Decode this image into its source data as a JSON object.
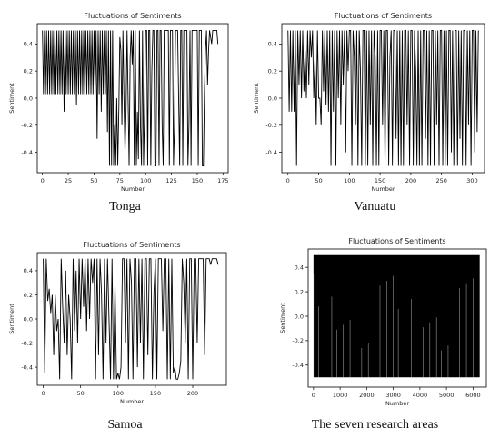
{
  "captions": [
    "Tonga",
    "Vanuatu",
    "Samoa",
    "The seven research areas"
  ],
  "chart_data": [
    {
      "type": "line",
      "title": "Fluctuations of Sentiments",
      "xlabel": "Number",
      "ylabel": "Sentiment",
      "xlim": [
        -5,
        180
      ],
      "ylim": [
        -0.55,
        0.55
      ],
      "xticks": [
        0,
        25,
        50,
        75,
        100,
        125,
        150,
        175
      ],
      "yticks": [
        -0.4,
        -0.2,
        0.0,
        0.2,
        0.4
      ],
      "series": [
        {
          "x": [
            0,
            1,
            2,
            3,
            4,
            5,
            6,
            7,
            8,
            9,
            10,
            11,
            12,
            13,
            14,
            15,
            16,
            17,
            18,
            19,
            20,
            21,
            22,
            23,
            24,
            25,
            26,
            27,
            28,
            29,
            30,
            31,
            32,
            33,
            34,
            35,
            36,
            37,
            38,
            39,
            40,
            41,
            42,
            43,
            44,
            45,
            46,
            47,
            48,
            49,
            50,
            51,
            52,
            53,
            54,
            55,
            56,
            57,
            58,
            59,
            60,
            61,
            62,
            63,
            64,
            65,
            66,
            67,
            68,
            69,
            70,
            71,
            72,
            73,
            74,
            75,
            76,
            77,
            78,
            79,
            80,
            81,
            82,
            83,
            84,
            85,
            86,
            87,
            88,
            89,
            90,
            91,
            92,
            93,
            94,
            95,
            96,
            97,
            98,
            99,
            100,
            101,
            102,
            103,
            104,
            105,
            106,
            107,
            108,
            109,
            110,
            111,
            112,
            113,
            114,
            115,
            116,
            117,
            118,
            119,
            120,
            121,
            122,
            123,
            124,
            125,
            126,
            127,
            128,
            129,
            130,
            131,
            132,
            133,
            134,
            135,
            136,
            137,
            138,
            139,
            140,
            141,
            142,
            143,
            144,
            145,
            146,
            147,
            148,
            149,
            150,
            151,
            152,
            153,
            154,
            155,
            156,
            157,
            158,
            159,
            160,
            161,
            162,
            163,
            164,
            165,
            166,
            167,
            168,
            169,
            170
          ],
          "y": [
            0.5,
            0.03,
            0.5,
            0.03,
            0.5,
            0.03,
            0.5,
            0.03,
            0.5,
            0.03,
            0.5,
            0.03,
            0.5,
            0.03,
            0.5,
            0.03,
            0.5,
            0.03,
            0.5,
            0.03,
            0.5,
            -0.1,
            0.5,
            0.03,
            0.5,
            0.03,
            0.5,
            0.03,
            0.5,
            0.03,
            0.5,
            0.03,
            0.5,
            -0.05,
            0.5,
            0.03,
            0.5,
            0.03,
            0.5,
            0.03,
            0.5,
            0.03,
            0.5,
            0.03,
            0.5,
            0.03,
            0.5,
            0.03,
            0.5,
            0.03,
            0.5,
            0.03,
            0.5,
            -0.3,
            0.5,
            0.03,
            0.5,
            -0.1,
            0.5,
            0.03,
            0.5,
            0.03,
            0.5,
            -0.25,
            0.5,
            -0.5,
            0.5,
            -0.5,
            0.5,
            -0.5,
            -0.2,
            -0.5,
            0.0,
            -0.5,
            -0.1,
            0.45,
            0.35,
            -0.2,
            0.5,
            0.0,
            -0.4,
            -0.1,
            0.5,
            0.0,
            -0.5,
            0.3,
            0.5,
            0.25,
            0.5,
            -0.5,
            0.5,
            -0.5,
            -0.1,
            -0.45,
            0.5,
            -0.2,
            -0.5,
            0.5,
            -0.5,
            -0.1,
            0.5,
            0.5,
            -0.5,
            0.5,
            0.5,
            -0.5,
            0.2,
            0.5,
            0.5,
            -0.5,
            -0.5,
            0.5,
            0.5,
            -0.5,
            0.5,
            0.5,
            -0.2,
            -0.5,
            0.5,
            0.5,
            0.5,
            0.5,
            0.5,
            -0.5,
            0.5,
            0.5,
            0.5,
            -0.5,
            -0.2,
            0.5,
            0.5,
            0.5,
            0.0,
            -0.5,
            0.5,
            0.5,
            -0.5,
            0.5,
            0.5,
            0.5,
            0.5,
            -0.5,
            -0.2,
            0.5,
            -0.5,
            0.5,
            0.5,
            0.5,
            0.5,
            0.5,
            0.5,
            -0.5,
            0.5,
            0.5,
            0.5,
            -0.5,
            -0.5,
            0.05,
            0.35,
            0.5,
            0.1,
            0.35,
            0.5,
            0.45,
            0.4,
            0.5,
            0.5,
            0.5,
            0.5,
            0.5,
            0.4
          ]
        }
      ]
    },
    {
      "type": "line",
      "title": "Fluctuations of Sentiments",
      "xlabel": "Number",
      "ylabel": "Sentiment",
      "xlim": [
        -10,
        320
      ],
      "ylim": [
        -0.55,
        0.55
      ],
      "xticks": [
        0,
        50,
        100,
        150,
        200,
        250,
        300
      ],
      "yticks": [
        -0.4,
        -0.2,
        0.0,
        0.2,
        0.4
      ],
      "series": [
        {
          "x": [
            0,
            2,
            4,
            6,
            8,
            10,
            12,
            14,
            16,
            18,
            20,
            22,
            24,
            26,
            28,
            30,
            32,
            34,
            36,
            38,
            40,
            42,
            44,
            46,
            48,
            50,
            52,
            54,
            56,
            58,
            60,
            62,
            64,
            66,
            68,
            70,
            72,
            74,
            76,
            78,
            80,
            82,
            84,
            86,
            88,
            90,
            92,
            94,
            96,
            98,
            100,
            102,
            104,
            106,
            108,
            110,
            112,
            114,
            116,
            118,
            120,
            122,
            124,
            126,
            128,
            130,
            132,
            134,
            136,
            138,
            140,
            142,
            144,
            146,
            148,
            150,
            152,
            154,
            156,
            158,
            160,
            162,
            164,
            166,
            168,
            170,
            172,
            174,
            176,
            178,
            180,
            182,
            184,
            186,
            188,
            190,
            192,
            194,
            196,
            198,
            200,
            202,
            204,
            206,
            208,
            210,
            212,
            214,
            216,
            218,
            220,
            222,
            224,
            226,
            228,
            230,
            232,
            234,
            236,
            238,
            240,
            242,
            244,
            246,
            248,
            250,
            252,
            254,
            256,
            258,
            260,
            262,
            264,
            266,
            268,
            270,
            272,
            274,
            276,
            278,
            280,
            282,
            284,
            286,
            288,
            290,
            292,
            294,
            296,
            298,
            300,
            302,
            304,
            306,
            308,
            310
          ],
          "y": [
            0.5,
            -0.1,
            0.5,
            -0.1,
            0.5,
            -0.1,
            0.5,
            -0.5,
            0.5,
            0.1,
            0.5,
            0.0,
            0.5,
            0.05,
            0.35,
            0.0,
            0.5,
            0.1,
            0.5,
            0.3,
            0.5,
            0.0,
            0.3,
            -0.2,
            0.5,
            0.0,
            0.0,
            -0.2,
            0.5,
            0.05,
            0.5,
            -0.05,
            0.5,
            -0.1,
            0.5,
            -0.5,
            0.5,
            -0.1,
            0.5,
            -0.5,
            0.5,
            0.0,
            0.5,
            -0.2,
            0.5,
            0.1,
            0.5,
            -0.4,
            0.5,
            0.2,
            0.5,
            0.5,
            -0.5,
            0.5,
            0.3,
            -0.2,
            0.5,
            -0.5,
            0.5,
            0.2,
            -0.5,
            0.5,
            0.5,
            -0.5,
            0.5,
            -0.5,
            0.5,
            -0.2,
            0.5,
            -0.5,
            0.5,
            0.3,
            -0.5,
            0.5,
            -0.5,
            0.5,
            0.5,
            -0.2,
            0.5,
            -0.5,
            0.5,
            0.5,
            -0.5,
            0.3,
            0.5,
            -0.5,
            0.5,
            0.5,
            -0.3,
            0.5,
            -0.5,
            0.5,
            -0.5,
            0.5,
            -0.5,
            0.5,
            0.5,
            -0.2,
            0.5,
            -0.5,
            0.5,
            0.5,
            -0.5,
            0.5,
            0.2,
            -0.5,
            0.5,
            -0.5,
            0.5,
            -0.5,
            0.5,
            0.5,
            -0.3,
            0.5,
            -0.5,
            0.5,
            -0.5,
            0.5,
            0.5,
            -0.5,
            0.5,
            -0.2,
            0.5,
            -0.5,
            0.5,
            0.5,
            -0.5,
            0.5,
            -0.5,
            0.5,
            -0.5,
            0.5,
            0.5,
            -0.4,
            0.5,
            -0.5,
            0.5,
            0.5,
            -0.5,
            0.5,
            -0.3,
            0.5,
            -0.5,
            0.5,
            0.5,
            -0.5,
            0.5,
            -0.2,
            0.5,
            -0.5,
            0.5,
            0.5,
            -0.4,
            0.5,
            -0.25,
            0.5
          ]
        }
      ]
    },
    {
      "type": "line",
      "title": "Fluctuations of Sentiments",
      "xlabel": "Number",
      "ylabel": "Sentiment",
      "xlim": [
        -8,
        245
      ],
      "ylim": [
        -0.55,
        0.55
      ],
      "xticks": [
        0,
        50,
        100,
        150,
        200
      ],
      "yticks": [
        -0.4,
        -0.2,
        0.0,
        0.2,
        0.4
      ],
      "series": [
        {
          "x": [
            0,
            2,
            4,
            6,
            8,
            10,
            12,
            14,
            16,
            18,
            20,
            22,
            24,
            26,
            28,
            30,
            32,
            34,
            36,
            38,
            40,
            42,
            44,
            46,
            48,
            50,
            52,
            54,
            56,
            58,
            60,
            62,
            64,
            66,
            68,
            70,
            72,
            74,
            76,
            78,
            80,
            82,
            84,
            86,
            88,
            90,
            92,
            94,
            96,
            98,
            100,
            102,
            104,
            106,
            108,
            110,
            112,
            114,
            116,
            118,
            120,
            122,
            124,
            126,
            128,
            130,
            132,
            134,
            136,
            138,
            140,
            142,
            144,
            146,
            148,
            150,
            152,
            154,
            156,
            158,
            160,
            162,
            164,
            166,
            168,
            170,
            172,
            174,
            176,
            178,
            180,
            182,
            184,
            186,
            188,
            190,
            192,
            194,
            196,
            198,
            200,
            202,
            204,
            206,
            208,
            210,
            212,
            214,
            216,
            218,
            220,
            222,
            224,
            226,
            228,
            230,
            232,
            234
          ],
          "y": [
            0.5,
            -0.45,
            0.5,
            0.15,
            0.25,
            0.05,
            0.2,
            -0.3,
            0.2,
            -0.1,
            0.0,
            -0.5,
            0.5,
            0.1,
            -0.2,
            0.4,
            -0.3,
            0.2,
            0.0,
            -0.5,
            0.5,
            -0.1,
            0.4,
            -0.2,
            0.5,
            0.0,
            0.5,
            0.1,
            0.5,
            -0.1,
            0.5,
            0.0,
            0.5,
            0.3,
            0.5,
            -0.5,
            0.5,
            -0.3,
            0.5,
            0.2,
            -0.5,
            0.5,
            -0.2,
            0.5,
            0.0,
            -0.5,
            0.5,
            -0.5,
            0.3,
            -0.5,
            -0.45,
            -0.5,
            -0.4,
            0.5,
            0.5,
            -0.2,
            0.5,
            -0.5,
            0.5,
            0.3,
            -0.5,
            0.5,
            0.5,
            -0.4,
            0.5,
            -0.2,
            0.5,
            -0.5,
            0.5,
            0.5,
            -0.3,
            0.5,
            0.5,
            -0.5,
            0.2,
            0.5,
            -0.5,
            0.5,
            0.5,
            0.5,
            -0.1,
            0.5,
            0.5,
            -0.5,
            0.5,
            -0.5,
            0.5,
            -0.45,
            -0.4,
            -0.5,
            -0.5,
            -0.45,
            -0.35,
            0.5,
            0.3,
            -0.2,
            0.5,
            -0.5,
            0.5,
            0.5,
            -0.5,
            0.5,
            0.5,
            -0.2,
            0.5,
            0.5,
            0.5,
            0.5,
            -0.3,
            0.5,
            0.5,
            0.5,
            0.45,
            0.5,
            0.5,
            0.5,
            0.5,
            0.45
          ]
        }
      ]
    },
    {
      "type": "line",
      "title": "Fluctuations of Sentiments",
      "xlabel": "Number",
      "ylabel": "Sentiment",
      "xlim": [
        -200,
        6500
      ],
      "ylim": [
        -0.58,
        0.55
      ],
      "xticks": [
        0,
        1000,
        2000,
        3000,
        4000,
        5000,
        6000
      ],
      "yticks": [
        -0.4,
        -0.2,
        0.0,
        0.2,
        0.4
      ],
      "series": [
        {
          "x": [
            0,
            6250
          ],
          "y": [
            0.5,
            -0.5
          ]
        }
      ]
    }
  ]
}
